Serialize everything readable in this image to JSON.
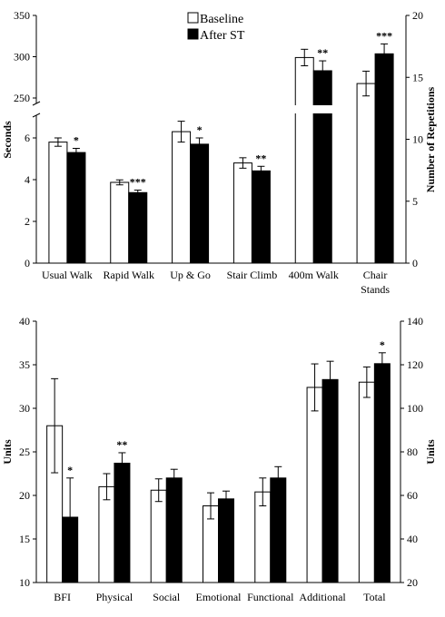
{
  "chart_data": [
    {
      "type": "bar",
      "ylabel": "Seconds",
      "y2label": "Number of Repetitions",
      "legend": {
        "placement": "top-center",
        "labels": [
          "Baseline",
          "After ST"
        ]
      },
      "categories": [
        "Usual Walk",
        "Rapid Walk",
        "Up & Go",
        "Stair Climb",
        "400m Walk",
        "Chair Stands"
      ],
      "left_axis": {
        "lower_ylim": [
          0,
          7
        ],
        "lower_ticks": [
          "0",
          "2",
          "4",
          "6"
        ],
        "upper_ylim": [
          230,
          350
        ],
        "upper_ticks": [
          "250",
          "300",
          "350"
        ],
        "axis_break": true
      },
      "right_axis": {
        "ylim": [
          0,
          20
        ],
        "ticks": [
          "0",
          "5",
          "10",
          "15",
          "20"
        ]
      },
      "series": [
        {
          "name": "Baseline",
          "values": [
            5.8,
            3.87,
            6.3,
            4.8,
            299,
            14.5
          ],
          "errors": [
            0.2,
            0.12,
            0.5,
            0.25,
            10,
            1.0
          ]
        },
        {
          "name": "After ST",
          "values": [
            5.3,
            3.38,
            5.7,
            4.42,
            283,
            16.9
          ],
          "errors": [
            0.2,
            0.12,
            0.3,
            0.22,
            12,
            0.8
          ]
        }
      ],
      "axis_of_category": [
        "left",
        "left",
        "left",
        "left",
        "left",
        "right"
      ],
      "significance": [
        "*",
        "***",
        "*",
        "**",
        "**",
        "***"
      ],
      "gridlines": false
    },
    {
      "type": "bar",
      "ylabel": "Units",
      "y2label": "Units",
      "categories": [
        "BFI",
        "Physical",
        "Social",
        "Emotional",
        "Functional",
        "Additional",
        "Total"
      ],
      "left_axis": {
        "ylim": [
          10,
          40
        ],
        "ticks": [
          "10",
          "15",
          "20",
          "25",
          "30",
          "35",
          "40"
        ]
      },
      "right_axis": {
        "ylim": [
          20,
          140
        ],
        "ticks": [
          "20",
          "40",
          "60",
          "80",
          "100",
          "120",
          "140"
        ]
      },
      "series": [
        {
          "name": "Baseline",
          "values": [
            28,
            21,
            20.6,
            18.8,
            20.4,
            32.4,
            112
          ],
          "errors": [
            5.4,
            1.5,
            1.3,
            1.5,
            1.6,
            2.7,
            7
          ]
        },
        {
          "name": "After ST",
          "values": [
            17.5,
            23.7,
            22,
            19.6,
            22,
            33.3,
            120.5
          ],
          "errors": [
            4.5,
            1.2,
            1.0,
            0.9,
            1.3,
            2.1,
            5
          ]
        }
      ],
      "axis_of_category": [
        "left",
        "left",
        "left",
        "left",
        "left",
        "left",
        "right"
      ],
      "significance": [
        "*",
        "**",
        "",
        "",
        "",
        "",
        "*"
      ],
      "gridlines": false
    }
  ],
  "colors": {
    "baseline_fill": "#ffffff",
    "after_fill": "#000000",
    "stroke": "#000000"
  }
}
